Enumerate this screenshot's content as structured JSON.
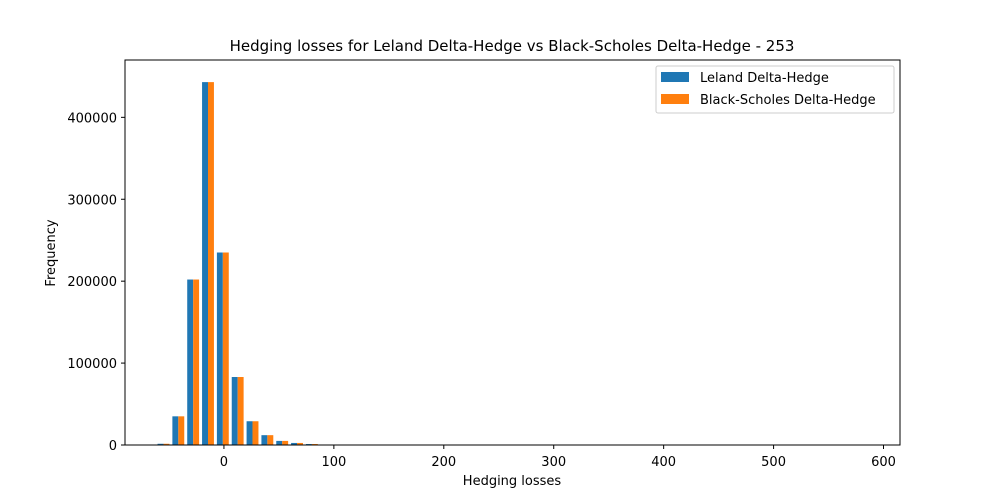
{
  "chart_data": {
    "type": "bar",
    "title": "Hedging losses for Leland Delta-Hedge vs Black-Scholes Delta-Hedge - 253",
    "xlabel": "Hedging losses",
    "ylabel": "Frequency",
    "xlim": [
      -90,
      615
    ],
    "ylim": [
      0,
      470000
    ],
    "xticks": [
      0,
      100,
      200,
      300,
      400,
      500,
      600
    ],
    "yticks": [
      0,
      100000,
      200000,
      300000,
      400000
    ],
    "bin_centers": [
      -55,
      -41.5,
      -28,
      -14.5,
      -1,
      12.5,
      26,
      39.5,
      53,
      66.5,
      80,
      93.5
    ],
    "bin_width": 13.5,
    "series": [
      {
        "name": "Leland Delta-Hedge",
        "color": "#1f77b4",
        "values": [
          1500,
          35000,
          202000,
          443000,
          235000,
          83000,
          29000,
          12000,
          5000,
          2500,
          1200,
          500
        ]
      },
      {
        "name": "Black-Scholes Delta-Hedge",
        "color": "#ff7f0e",
        "values": [
          1500,
          35000,
          202000,
          443000,
          235000,
          83000,
          29000,
          12000,
          5000,
          2500,
          1200,
          500
        ]
      }
    ],
    "legend_position": "top-right",
    "grid": false
  }
}
